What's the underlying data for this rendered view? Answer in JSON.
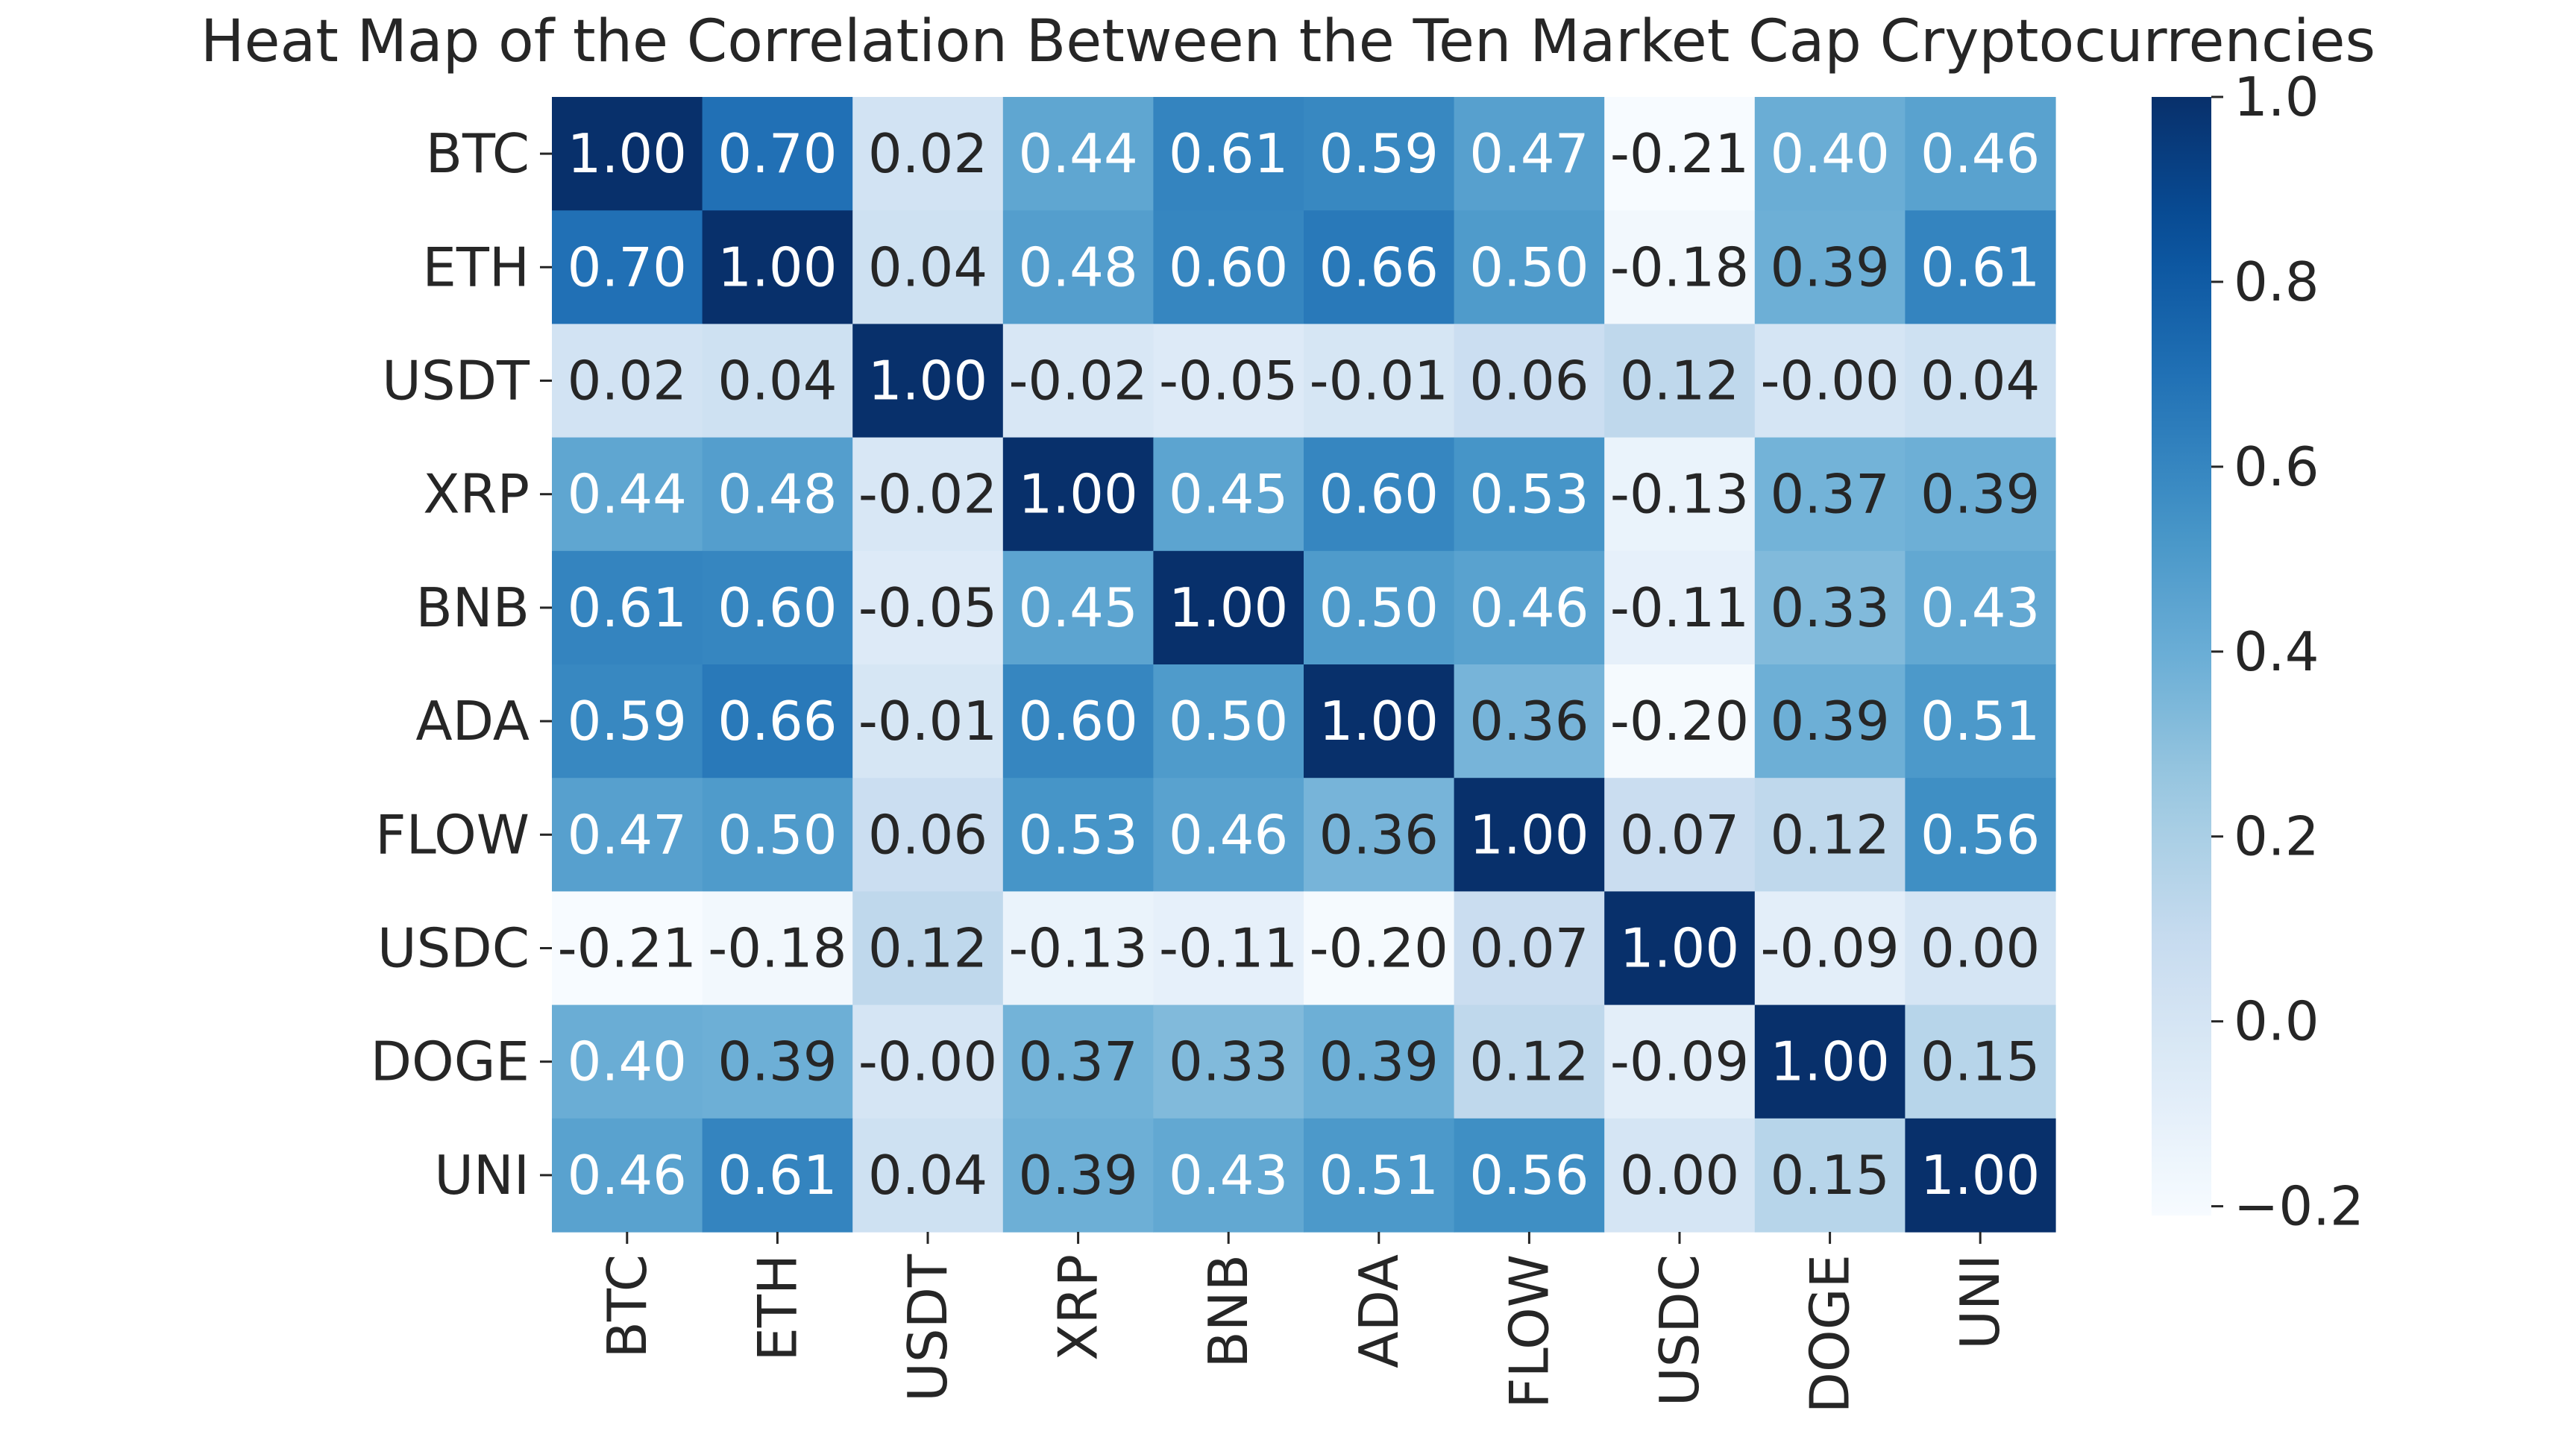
{
  "chart_data": {
    "type": "heatmap",
    "title": "Heat Map of the Correlation Between the Ten Market Cap Cryptocurrencies",
    "xlabel": "",
    "ylabel": "",
    "rows": [
      "BTC",
      "ETH",
      "USDT",
      "XRP",
      "BNB",
      "ADA",
      "FLOW",
      "USDC",
      "DOGE",
      "UNI"
    ],
    "columns": [
      "BTC",
      "ETH",
      "USDT",
      "XRP",
      "BNB",
      "ADA",
      "FLOW",
      "USDC",
      "DOGE",
      "UNI"
    ],
    "values": [
      [
        1.0,
        0.7,
        0.02,
        0.44,
        0.61,
        0.59,
        0.47,
        -0.21,
        0.4,
        0.46
      ],
      [
        0.7,
        1.0,
        0.04,
        0.48,
        0.6,
        0.66,
        0.5,
        -0.18,
        0.39,
        0.61
      ],
      [
        0.02,
        0.04,
        1.0,
        -0.02,
        -0.05,
        -0.01,
        0.06,
        0.12,
        -0.0,
        0.04
      ],
      [
        0.44,
        0.48,
        -0.02,
        1.0,
        0.45,
        0.6,
        0.53,
        -0.13,
        0.37,
        0.39
      ],
      [
        0.61,
        0.6,
        -0.05,
        0.45,
        1.0,
        0.5,
        0.46,
        -0.11,
        0.33,
        0.43
      ],
      [
        0.59,
        0.66,
        -0.01,
        0.6,
        0.5,
        1.0,
        0.36,
        -0.2,
        0.39,
        0.51
      ],
      [
        0.47,
        0.5,
        0.06,
        0.53,
        0.46,
        0.36,
        1.0,
        0.07,
        0.12,
        0.56
      ],
      [
        -0.21,
        -0.18,
        0.12,
        -0.13,
        -0.11,
        -0.2,
        0.07,
        1.0,
        -0.09,
        0.0
      ],
      [
        0.4,
        0.39,
        -0.0,
        0.37,
        0.33,
        0.39,
        0.12,
        -0.09,
        1.0,
        0.15
      ],
      [
        0.46,
        0.61,
        0.04,
        0.39,
        0.43,
        0.51,
        0.56,
        0.0,
        0.15,
        1.0
      ]
    ],
    "value_labels": [
      [
        "1.00",
        "0.70",
        "0.02",
        "0.44",
        "0.61",
        "0.59",
        "0.47",
        "-0.21",
        "0.40",
        "0.46"
      ],
      [
        "0.70",
        "1.00",
        "0.04",
        "0.48",
        "0.60",
        "0.66",
        "0.50",
        "-0.18",
        "0.39",
        "0.61"
      ],
      [
        "0.02",
        "0.04",
        "1.00",
        "-0.02",
        "-0.05",
        "-0.01",
        "0.06",
        "0.12",
        "-0.00",
        "0.04"
      ],
      [
        "0.44",
        "0.48",
        "-0.02",
        "1.00",
        "0.45",
        "0.60",
        "0.53",
        "-0.13",
        "0.37",
        "0.39"
      ],
      [
        "0.61",
        "0.60",
        "-0.05",
        "0.45",
        "1.00",
        "0.50",
        "0.46",
        "-0.11",
        "0.33",
        "0.43"
      ],
      [
        "0.59",
        "0.66",
        "-0.01",
        "0.60",
        "0.50",
        "1.00",
        "0.36",
        "-0.20",
        "0.39",
        "0.51"
      ],
      [
        "0.47",
        "0.50",
        "0.06",
        "0.53",
        "0.46",
        "0.36",
        "1.00",
        "0.07",
        "0.12",
        "0.56"
      ],
      [
        "-0.21",
        "-0.18",
        "0.12",
        "-0.13",
        "-0.11",
        "-0.20",
        "0.07",
        "1.00",
        "-0.09",
        "0.00"
      ],
      [
        "0.40",
        "0.39",
        "-0.00",
        "0.37",
        "0.33",
        "0.39",
        "0.12",
        "-0.09",
        "1.00",
        "0.15"
      ],
      [
        "0.46",
        "0.61",
        "0.04",
        "0.39",
        "0.43",
        "0.51",
        "0.56",
        "0.00",
        "0.15",
        "1.00"
      ]
    ],
    "colormap": "Blues",
    "color_range": [
      -0.21,
      1.0
    ],
    "colorbar": {
      "ticks": [
        1.0,
        0.8,
        0.6,
        0.4,
        0.2,
        0.0,
        -0.2
      ],
      "tick_labels": [
        "1.0",
        "0.8",
        "0.6",
        "0.4",
        "0.2",
        "0.0",
        "−0.2"
      ]
    },
    "annotation_colors": {
      "light": "#ffffff",
      "dark": "#262626"
    },
    "text_color": "#262626"
  }
}
